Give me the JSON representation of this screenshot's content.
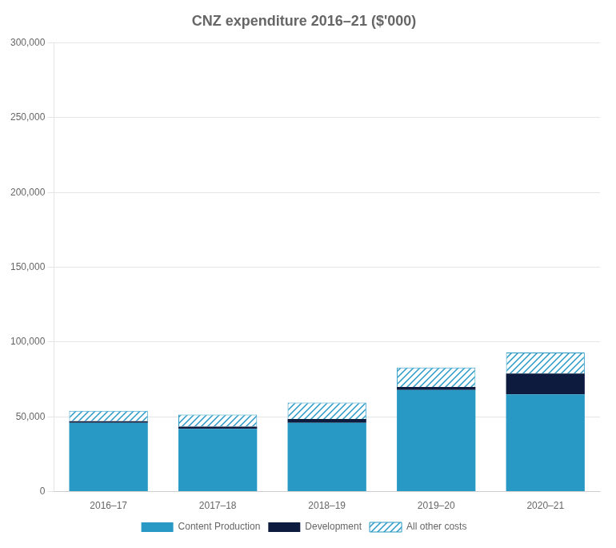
{
  "chart_data": {
    "type": "bar",
    "title": "CNZ expenditure 2016–21 ($'000)",
    "categories": [
      "2016–17",
      "2017–18",
      "2018–19",
      "2019–20",
      "2020–21"
    ],
    "series": [
      {
        "name": "Content Production",
        "color": "#2899c4",
        "values": [
          46000,
          42000,
          46000,
          68000,
          65000
        ]
      },
      {
        "name": "Development",
        "color": "#0d1b3e",
        "values": [
          1000,
          1500,
          2500,
          2000,
          14000
        ]
      },
      {
        "name": "All other costs",
        "color": "#2899c4",
        "values": [
          7000,
          8000,
          11000,
          13000,
          14000
        ]
      }
    ],
    "stacked": true,
    "ylim": [
      0,
      300000
    ],
    "yticks": [
      0,
      {
        "value": 50000,
        "label": "50,000"
      },
      {
        "value": 100000,
        "label": "100,000"
      },
      {
        "value": 150000,
        "label": "150,000"
      },
      {
        "value": 200000,
        "label": "200,000"
      },
      {
        "value": 250000,
        "label": "250,000"
      },
      {
        "value": 300000,
        "label": "300,000"
      }
    ],
    "grid": true,
    "legend": "bottom"
  }
}
